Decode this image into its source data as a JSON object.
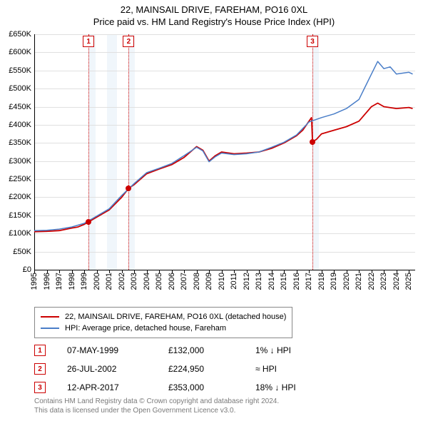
{
  "title_line1": "22, MAINSAIL DRIVE, FAREHAM, PO16 0XL",
  "title_line2": "Price paid vs. HM Land Registry's House Price Index (HPI)",
  "chart": {
    "type": "line",
    "background_color": "#ffffff",
    "grid_color": "#e0e0e0",
    "shade_color": "#f0f6fb",
    "y": {
      "min": 0,
      "max": 650000,
      "step": 50000,
      "labels": [
        "£0",
        "£50K",
        "£100K",
        "£150K",
        "£200K",
        "£250K",
        "£300K",
        "£350K",
        "£400K",
        "£450K",
        "£500K",
        "£550K",
        "£600K",
        "£650K"
      ]
    },
    "x": {
      "min": 1995,
      "max": 2025.5,
      "labels": [
        "1995",
        "1996",
        "1997",
        "1998",
        "1999",
        "2000",
        "2001",
        "2002",
        "2003",
        "2004",
        "2005",
        "2006",
        "2007",
        "2008",
        "2009",
        "2010",
        "2011",
        "2012",
        "2013",
        "2014",
        "2015",
        "2016",
        "2017",
        "2018",
        "2019",
        "2020",
        "2021",
        "2022",
        "2023",
        "2024",
        "2025"
      ]
    },
    "shaded_ranges": [
      [
        1999.35,
        1999.9
      ],
      [
        2000.8,
        2001.6
      ],
      [
        2002.56,
        2003.05
      ],
      [
        2017.28,
        2017.8
      ]
    ],
    "series": [
      {
        "name": "22, MAINSAIL DRIVE, FAREHAM, PO16 0XL (detached house)",
        "color": "#cc0000",
        "line_width": 1.8,
        "data": [
          [
            1995,
            105000
          ],
          [
            1996,
            106000
          ],
          [
            1997,
            108000
          ],
          [
            1998,
            115000
          ],
          [
            1998.5,
            118000
          ],
          [
            1999,
            125000
          ],
          [
            1999.35,
            132000
          ],
          [
            2000,
            145000
          ],
          [
            2001,
            165000
          ],
          [
            2002,
            200000
          ],
          [
            2002.56,
            224950
          ],
          [
            2003,
            235000
          ],
          [
            2004,
            265000
          ],
          [
            2005,
            278000
          ],
          [
            2006,
            290000
          ],
          [
            2007,
            310000
          ],
          [
            2008,
            340000
          ],
          [
            2008.5,
            330000
          ],
          [
            2009,
            300000
          ],
          [
            2009.5,
            315000
          ],
          [
            2010,
            325000
          ],
          [
            2011,
            320000
          ],
          [
            2012,
            322000
          ],
          [
            2013,
            325000
          ],
          [
            2014,
            335000
          ],
          [
            2015,
            350000
          ],
          [
            2016,
            370000
          ],
          [
            2016.5,
            385000
          ],
          [
            2017,
            410000
          ],
          [
            2017.2,
            420000
          ],
          [
            2017.28,
            353000
          ],
          [
            2017.6,
            360000
          ],
          [
            2018,
            375000
          ],
          [
            2019,
            385000
          ],
          [
            2020,
            395000
          ],
          [
            2021,
            410000
          ],
          [
            2022,
            450000
          ],
          [
            2022.5,
            460000
          ],
          [
            2023,
            450000
          ],
          [
            2024,
            445000
          ],
          [
            2025,
            448000
          ],
          [
            2025.3,
            445000
          ]
        ]
      },
      {
        "name": "HPI: Average price, detached house, Fareham",
        "color": "#4a7ec8",
        "line_width": 1.5,
        "data": [
          [
            1995,
            108000
          ],
          [
            1996,
            109000
          ],
          [
            1997,
            112000
          ],
          [
            1998,
            118000
          ],
          [
            1999,
            128000
          ],
          [
            2000,
            148000
          ],
          [
            2001,
            168000
          ],
          [
            2002,
            205000
          ],
          [
            2003,
            238000
          ],
          [
            2004,
            268000
          ],
          [
            2005,
            280000
          ],
          [
            2006,
            293000
          ],
          [
            2007,
            315000
          ],
          [
            2008,
            338000
          ],
          [
            2008.5,
            328000
          ],
          [
            2009,
            298000
          ],
          [
            2009.5,
            312000
          ],
          [
            2010,
            322000
          ],
          [
            2011,
            318000
          ],
          [
            2012,
            320000
          ],
          [
            2013,
            325000
          ],
          [
            2014,
            338000
          ],
          [
            2015,
            352000
          ],
          [
            2016,
            372000
          ],
          [
            2017,
            408000
          ],
          [
            2018,
            420000
          ],
          [
            2019,
            430000
          ],
          [
            2020,
            445000
          ],
          [
            2021,
            470000
          ],
          [
            2022,
            540000
          ],
          [
            2022.5,
            575000
          ],
          [
            2023,
            555000
          ],
          [
            2023.5,
            560000
          ],
          [
            2024,
            540000
          ],
          [
            2025,
            545000
          ],
          [
            2025.3,
            540000
          ]
        ]
      }
    ],
    "markers": [
      {
        "n": "1",
        "year": 1999.35,
        "value": 132000,
        "color": "#cc0000"
      },
      {
        "n": "2",
        "year": 2002.56,
        "value": 224950,
        "color": "#cc0000"
      },
      {
        "n": "3",
        "year": 2017.28,
        "value": 353000,
        "color": "#cc0000"
      }
    ]
  },
  "legend": [
    {
      "color": "#cc0000",
      "label": "22, MAINSAIL DRIVE, FAREHAM, PO16 0XL (detached house)"
    },
    {
      "color": "#4a7ec8",
      "label": "HPI: Average price, detached house, Fareham"
    }
  ],
  "sales": [
    {
      "n": "1",
      "color": "#cc0000",
      "date": "07-MAY-1999",
      "price": "£132,000",
      "hpi": "1% ↓ HPI"
    },
    {
      "n": "2",
      "color": "#cc0000",
      "date": "26-JUL-2002",
      "price": "£224,950",
      "hpi": "≈ HPI"
    },
    {
      "n": "3",
      "color": "#cc0000",
      "date": "12-APR-2017",
      "price": "£353,000",
      "hpi": "18% ↓ HPI"
    }
  ],
  "footer": {
    "line1": "Contains HM Land Registry data © Crown copyright and database right 2024.",
    "line2": "This data is licensed under the Open Government Licence v3.0."
  }
}
